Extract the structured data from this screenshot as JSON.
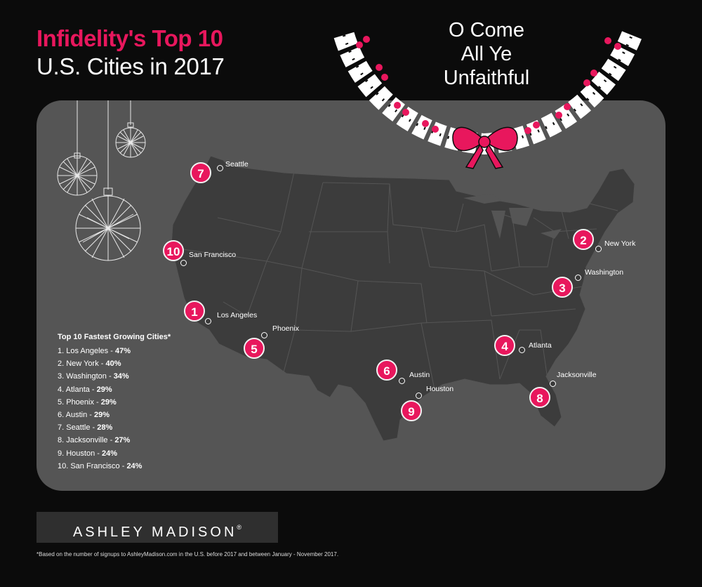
{
  "title": {
    "line1": "Infidelity's Top 10",
    "line2": "U.S. Cities in 2017"
  },
  "tagline": [
    "O Come",
    "All Ye",
    "Unfaithful"
  ],
  "colors": {
    "accent": "#e8175d",
    "background": "#0b0b0b",
    "map_panel": "#555555",
    "states": "#3c3c3c"
  },
  "icons": [
    "ornament-icon",
    "holly-wreath-icon",
    "ribbon-bow-icon"
  ],
  "cities": [
    {
      "rank": "7",
      "name": "Seattle"
    },
    {
      "rank": "10",
      "name": "San Francisco"
    },
    {
      "rank": "1",
      "name": "Los Angeles"
    },
    {
      "rank": "5",
      "name": "Phoenix"
    },
    {
      "rank": "6",
      "name": "Austin"
    },
    {
      "rank": "9",
      "name": "Houston"
    },
    {
      "rank": "4",
      "name": "Atlanta"
    },
    {
      "rank": "8",
      "name": "Jacksonville"
    },
    {
      "rank": "3",
      "name": "Washington"
    },
    {
      "rank": "2",
      "name": "New York"
    }
  ],
  "list": {
    "heading": "Top 10 Fastest Growing Cities*",
    "items": [
      {
        "label": "1. Los Angeles - ",
        "value": "47%"
      },
      {
        "label": "2. New York - ",
        "value": "40%"
      },
      {
        "label": "3. Washington - ",
        "value": "34%"
      },
      {
        "label": "4. Atlanta - ",
        "value": "29%"
      },
      {
        "label": "5. Phoenix - ",
        "value": "29%"
      },
      {
        "label": "6. Austin - ",
        "value": "29%"
      },
      {
        "label": "7. Seattle - ",
        "value": "28%"
      },
      {
        "label": "8. Jacksonville - ",
        "value": "27%"
      },
      {
        "label": "9. Houston - ",
        "value": "24%"
      },
      {
        "label": "10. San Francisco - ",
        "value": "24%"
      }
    ]
  },
  "brand": {
    "name": "ASHLEY MADISON",
    "mark": "®"
  },
  "footnote": "*Based on the number of signups to AshleyMadison.com in the U.S. before 2017 and between January - November 2017."
}
